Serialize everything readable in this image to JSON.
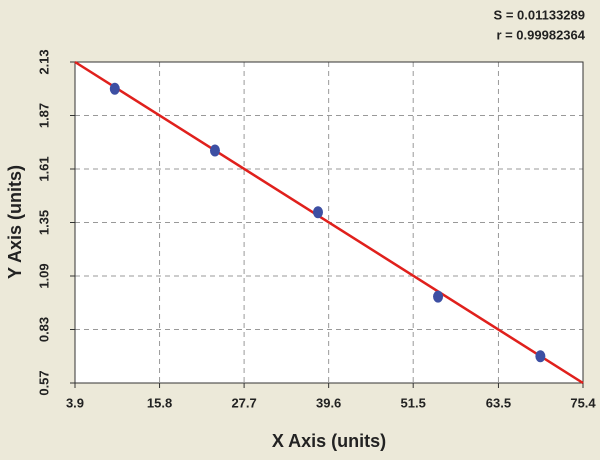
{
  "chart_data": {
    "type": "scatter",
    "annotations": [
      "S = 0.01133289",
      "r = 0.99982364"
    ],
    "x_label": "X Axis (units)",
    "y_label": "Y Axis (units)",
    "x": [
      9.5,
      23.6,
      38.1,
      55.0,
      69.4
    ],
    "values": [
      2.0,
      1.7,
      1.4,
      0.99,
      0.7
    ],
    "color": "#3d4fa3",
    "fit_line": {
      "x": [
        3.9,
        75.4
      ],
      "values": [
        2.13,
        0.57
      ],
      "color": "#e0201c"
    },
    "xlim": [
      3.9,
      75.4
    ],
    "xticks": [
      3.9,
      15.8,
      27.7,
      39.6,
      51.5,
      63.5,
      75.4
    ],
    "ylim": [
      0.57,
      2.13
    ],
    "yticks": [
      0.57,
      0.83,
      1.09,
      1.35,
      1.61,
      1.87,
      2.13
    ],
    "grid": true
  }
}
